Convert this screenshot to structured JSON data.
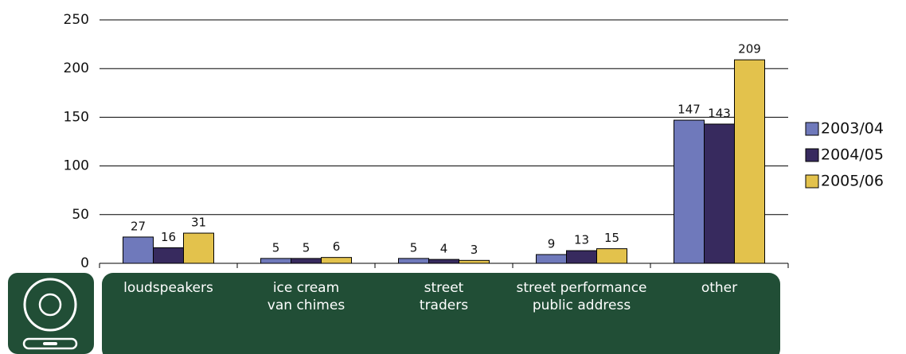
{
  "chart_data": {
    "type": "bar",
    "categories": [
      "loudspeakers",
      "ice cream\nvan chimes",
      "street\ntraders",
      "street performance\npublic address",
      "other"
    ],
    "series": [
      {
        "name": "2003/04",
        "color": "#6f79bb",
        "values": [
          27,
          5,
          5,
          9,
          147
        ]
      },
      {
        "name": "2004/05",
        "color": "#372a5e",
        "values": [
          16,
          5,
          4,
          13,
          143
        ]
      },
      {
        "name": "2005/06",
        "color": "#e3c24c",
        "values": [
          31,
          6,
          3,
          15,
          209
        ]
      }
    ],
    "ylim": [
      0,
      250
    ],
    "yticks": [
      0,
      50,
      100,
      150,
      200,
      250
    ],
    "grid": true,
    "legend": "right"
  }
}
